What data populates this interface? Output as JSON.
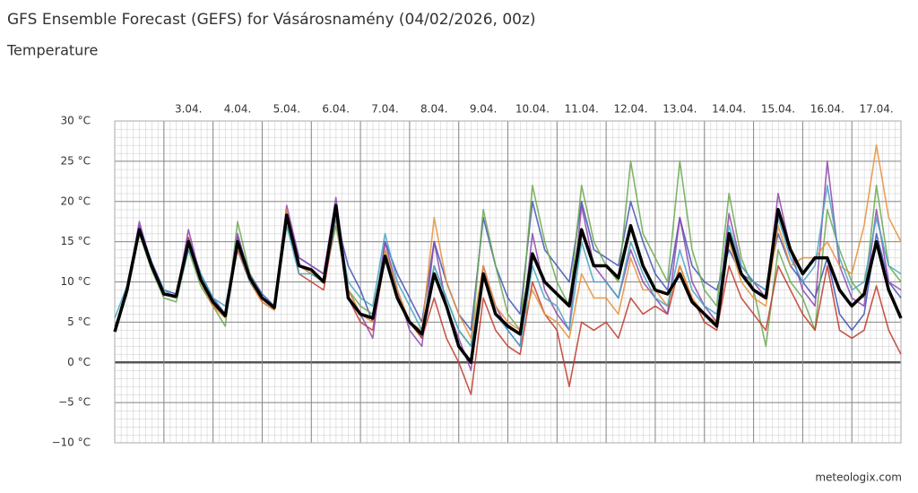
{
  "chart_data": {
    "type": "line",
    "title": "GFS Ensemble Forecast (GEFS) for Vásárosnamény (04/02/2026, 00z)",
    "subtitle": "Temperature",
    "source": "meteologix.com",
    "x": [
      0,
      6,
      12,
      18,
      24,
      30,
      36,
      42,
      48,
      54,
      60,
      66,
      72,
      78,
      84,
      90,
      96,
      102,
      108,
      114,
      120,
      126,
      132,
      138,
      144,
      150,
      156,
      162,
      168,
      174,
      180,
      186,
      192,
      198,
      204,
      210,
      216,
      222,
      228,
      234,
      240,
      246,
      252,
      258,
      264,
      270,
      276,
      282,
      288,
      294,
      300,
      306,
      312,
      318,
      324,
      330,
      336,
      342,
      348,
      354,
      360,
      366,
      372,
      378,
      384
    ],
    "xlim": [
      0,
      384
    ],
    "xticks": [
      {
        "value": 24,
        "label": "3.04."
      },
      {
        "value": 48,
        "label": "4.04."
      },
      {
        "value": 72,
        "label": "5.04."
      },
      {
        "value": 96,
        "label": "6.04."
      },
      {
        "value": 120,
        "label": "7.04."
      },
      {
        "value": 144,
        "label": "8.04."
      },
      {
        "value": 168,
        "label": "9.04."
      },
      {
        "value": 192,
        "label": "10.04."
      },
      {
        "value": 216,
        "label": "11.04."
      },
      {
        "value": 240,
        "label": "12.04."
      },
      {
        "value": 264,
        "label": "13.04."
      },
      {
        "value": 288,
        "label": "14.04."
      },
      {
        "value": 312,
        "label": "15.04."
      },
      {
        "value": 336,
        "label": "16.04."
      },
      {
        "value": 360,
        "label": "17.04."
      }
    ],
    "ylim": [
      -10,
      30
    ],
    "yticks": [
      {
        "value": -10,
        "label": "−10 °C"
      },
      {
        "value": -5,
        "label": "−5 °C"
      },
      {
        "value": 0,
        "label": "0 °C"
      },
      {
        "value": 5,
        "label": "5 °C"
      },
      {
        "value": 10,
        "label": "10 °C"
      },
      {
        "value": 15,
        "label": "15 °C"
      },
      {
        "value": 20,
        "label": "20 °C"
      },
      {
        "value": 25,
        "label": "25 °C"
      },
      {
        "value": 30,
        "label": "30 °C"
      }
    ],
    "grid": true,
    "series": [
      {
        "color": "#3f51b5",
        "values": [
          4,
          9.5,
          17,
          12.5,
          9,
          8.5,
          15.5,
          11,
          8,
          6,
          15.5,
          11,
          8.5,
          7,
          19,
          13,
          12,
          11,
          18,
          12,
          9,
          5,
          15,
          11,
          8,
          5,
          15,
          10,
          6,
          4,
          18,
          12,
          8,
          6,
          20,
          14,
          12,
          10,
          20,
          14,
          13,
          12,
          20,
          15,
          11,
          9,
          18,
          12,
          10,
          9,
          14,
          11,
          10,
          9,
          16,
          12,
          10,
          8,
          13,
          6,
          4,
          6,
          16,
          10,
          8
        ]
      },
      {
        "color": "#6aa84f",
        "values": [
          4.5,
          8.5,
          16,
          11.5,
          8,
          7.5,
          14,
          9.5,
          7,
          4.5,
          17.5,
          11,
          8,
          7,
          17,
          12,
          11,
          10,
          17,
          9,
          7,
          6,
          14,
          9,
          5,
          3,
          12,
          8,
          4,
          2,
          19,
          12,
          6,
          4,
          22,
          15,
          10,
          7,
          22,
          15,
          12,
          10,
          25,
          16,
          13,
          10,
          25,
          14,
          9,
          7,
          21,
          13,
          9,
          2,
          14,
          10,
          8,
          4,
          19,
          14,
          10,
          8,
          22,
          12,
          10
        ]
      },
      {
        "color": "#c0392b",
        "values": [
          4,
          9,
          16.5,
          12,
          8.5,
          8,
          15.5,
          10,
          7,
          6,
          14,
          10,
          7.5,
          6.5,
          18,
          11,
          10,
          9,
          18,
          8,
          5,
          4,
          13,
          8,
          5,
          3,
          8,
          3,
          0,
          -4,
          8,
          4,
          2,
          1,
          10,
          6,
          4,
          -3,
          5,
          4,
          5,
          3,
          8,
          6,
          7,
          6,
          12,
          8,
          5,
          4,
          12,
          8,
          6,
          4,
          12,
          9,
          6,
          4,
          12,
          4,
          3,
          4,
          9.5,
          4,
          1
        ]
      },
      {
        "color": "#8e44ad",
        "values": [
          4,
          9,
          17.5,
          12,
          8.5,
          8,
          16.5,
          10.5,
          7.5,
          6,
          16,
          10.5,
          8,
          7,
          19.5,
          13,
          12,
          11,
          20.5,
          9,
          6,
          3,
          15,
          9,
          4,
          2,
          15,
          7,
          3,
          -1,
          12,
          7,
          4,
          2,
          16,
          9,
          6,
          4,
          19.5,
          12,
          10,
          8,
          14,
          10,
          8,
          6,
          18,
          10,
          7,
          5,
          18.5,
          12,
          10,
          8,
          21,
          14,
          9,
          7,
          25,
          12,
          8,
          7,
          19,
          10,
          9
        ]
      },
      {
        "color": "#e69138",
        "values": [
          4,
          8.5,
          16,
          12,
          8.5,
          8,
          15,
          10,
          7,
          5.5,
          14.5,
          10,
          7.5,
          6.5,
          19,
          12,
          11,
          10,
          19,
          9,
          6,
          5,
          14,
          9,
          5,
          4,
          18,
          10,
          6,
          3,
          12,
          7,
          5,
          4,
          9,
          6,
          5,
          3,
          11,
          8,
          8,
          6,
          13,
          9,
          9,
          7,
          12,
          8,
          6,
          5,
          15,
          10,
          8,
          7,
          17,
          12,
          13,
          13,
          15,
          12,
          11,
          17,
          27,
          18,
          15
        ]
      },
      {
        "color": "#45a5c4",
        "values": [
          5.5,
          9.5,
          16,
          12,
          9,
          8,
          14,
          11,
          8,
          7,
          14.5,
          10,
          8,
          7,
          17,
          11,
          11,
          10,
          18,
          10,
          8,
          7,
          16,
          10,
          7,
          4,
          12,
          8,
          4,
          2,
          11,
          6,
          4,
          2,
          12,
          8,
          7,
          4,
          15,
          10,
          10,
          8,
          15,
          11,
          8,
          7,
          14,
          9,
          7,
          6,
          17,
          12,
          10,
          9,
          18,
          13,
          10,
          12,
          22,
          13,
          9,
          10,
          18,
          12,
          11
        ]
      },
      {
        "color": "#000000",
        "values": [
          3.8,
          9,
          16.5,
          12,
          8.5,
          8.2,
          15,
          10.3,
          7.5,
          5.8,
          15,
          10.5,
          8,
          6.8,
          18.3,
          12,
          11.5,
          10,
          19.5,
          8,
          6,
          5.5,
          13.2,
          8,
          5,
          3.5,
          11,
          7,
          2,
          0,
          11,
          6,
          4.5,
          3.5,
          13.5,
          10,
          8.5,
          7,
          16.5,
          12,
          12,
          10.5,
          17,
          12,
          9,
          8.5,
          11,
          7.5,
          6,
          4.5,
          16,
          11,
          9,
          8,
          19,
          14,
          11,
          13,
          13,
          9,
          7,
          8.5,
          15,
          9,
          5.5
        ]
      }
    ]
  }
}
